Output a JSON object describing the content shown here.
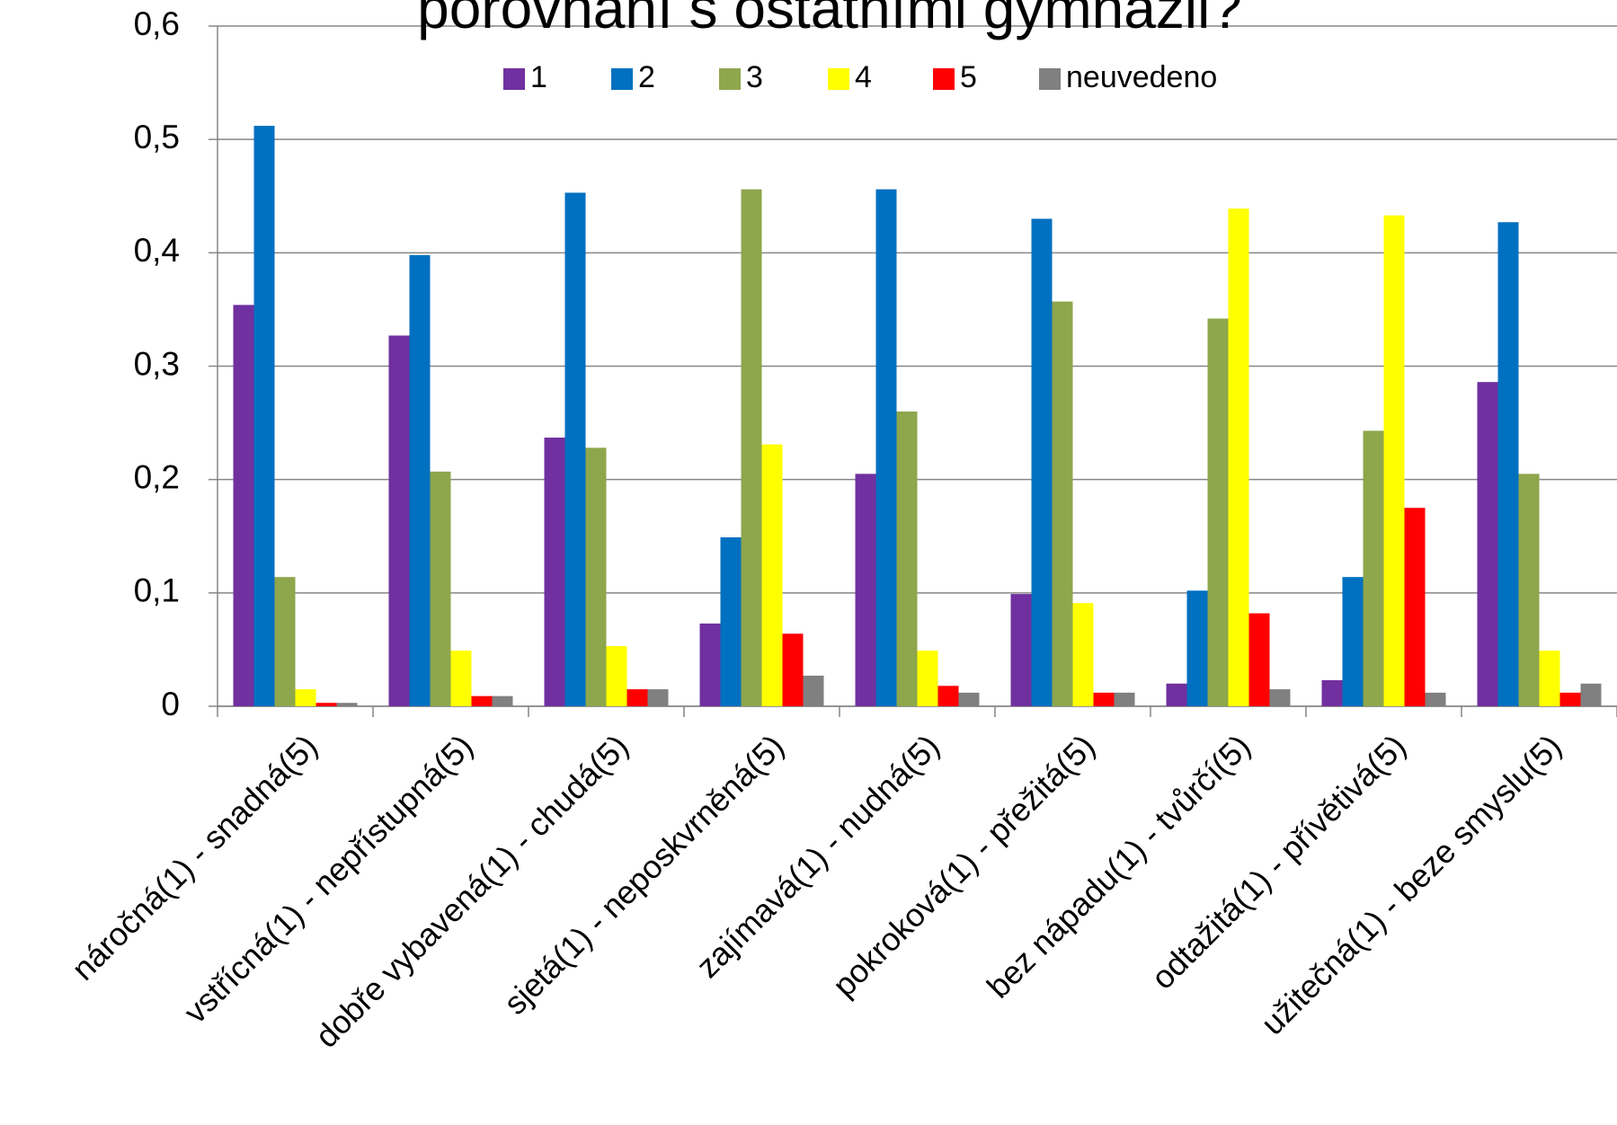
{
  "chart_data": {
    "type": "bar",
    "title": "porovnání s ostatními gymnázii?",
    "categories": [
      "náročná(1) - snadná(5)",
      "vstřícná(1) - nepřístupná(5)",
      "dobře vybavená(1) - chudá(5)",
      "sjetá(1) - neposkvrněná(5)",
      "zajímavá(1) - nudná(5)",
      "pokroková(1) - přežitá(5)",
      "bez nápadu(1) - tvůrčí(5)",
      "odtažitá(1) - přívětivá(5)",
      "užitečná(1) - beze smyslu(5)"
    ],
    "series": [
      {
        "name": "1",
        "color": "#7030a0",
        "values": [
          0.354,
          0.327,
          0.237,
          0.073,
          0.205,
          0.099,
          0.02,
          0.023,
          0.286
        ]
      },
      {
        "name": "2",
        "color": "#0070c0",
        "values": [
          0.512,
          0.398,
          0.453,
          0.149,
          0.456,
          0.43,
          0.102,
          0.114,
          0.427
        ]
      },
      {
        "name": "3",
        "color": "#8ea64c",
        "values": [
          0.114,
          0.207,
          0.228,
          0.456,
          0.26,
          0.357,
          0.342,
          0.243,
          0.205
        ]
      },
      {
        "name": "4",
        "color": "#ffff00",
        "values": [
          0.015,
          0.049,
          0.053,
          0.231,
          0.049,
          0.091,
          0.439,
          0.433,
          0.049
        ]
      },
      {
        "name": "5",
        "color": "#ff0000",
        "values": [
          0.003,
          0.009,
          0.015,
          0.064,
          0.018,
          0.012,
          0.082,
          0.175,
          0.012
        ]
      },
      {
        "name": "neuvedeno",
        "color": "#808080",
        "values": [
          0.003,
          0.009,
          0.015,
          0.027,
          0.012,
          0.012,
          0.015,
          0.012,
          0.02
        ]
      }
    ],
    "ylim": [
      0,
      0.6
    ],
    "yticks": [
      0,
      {
        "value": 0.1,
        "label": "0,1"
      },
      {
        "value": 0.2,
        "label": "0,2"
      },
      {
        "value": 0.3,
        "label": "0,3"
      },
      {
        "value": 0.4,
        "label": "0,4"
      },
      {
        "value": 0.5,
        "label": "0,5"
      },
      {
        "value": 0.6,
        "label": "0,6"
      }
    ],
    "grid": true,
    "legend": "top"
  }
}
